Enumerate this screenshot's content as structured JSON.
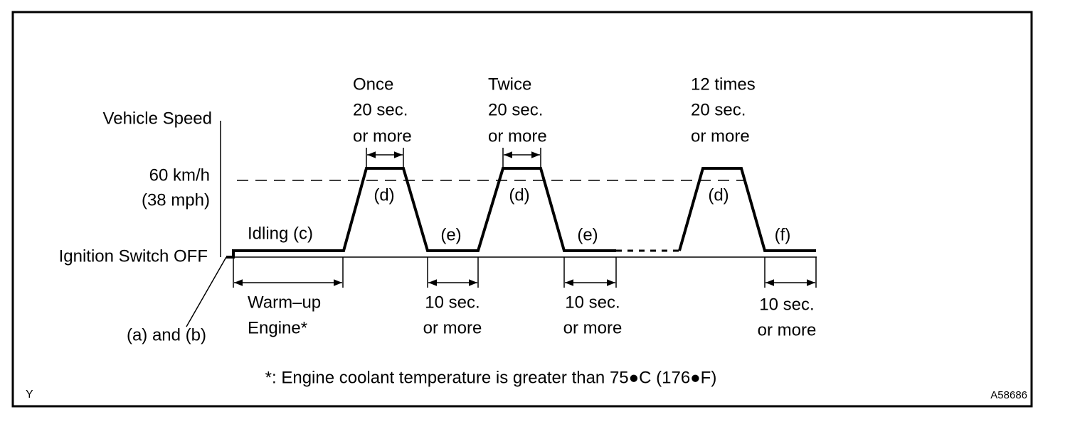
{
  "axis": {
    "title": "Vehicle Speed",
    "speed_label": [
      "60 km/h",
      "(38 mph)"
    ],
    "baseline_label": "Ignition Switch OFF"
  },
  "start_label": "(a) and (b)",
  "warmup": {
    "phase": "Idling (c)",
    "label": [
      "Warm–up",
      "Engine*"
    ]
  },
  "cycles": [
    {
      "count": "Once",
      "duration": [
        "20 sec.",
        "or more"
      ],
      "phase": "(d)"
    },
    {
      "count": "Twice",
      "duration": [
        "20 sec.",
        "or more"
      ],
      "phase": "(d)"
    },
    {
      "count": "12 times",
      "duration": [
        "20 sec.",
        "or more"
      ],
      "phase": "(d)"
    }
  ],
  "stops": [
    {
      "phase": "(e)",
      "duration": [
        "10 sec.",
        "or more"
      ]
    },
    {
      "phase": "(e)",
      "duration": [
        "10 sec.",
        "or more"
      ]
    },
    {
      "phase": "(f)",
      "duration": [
        "10 sec.",
        "or more"
      ]
    }
  ],
  "footnote": "*: Engine coolant temperature is greater than 75●C (176●F)",
  "corner_label": "Y",
  "figure_id": "A58686"
}
